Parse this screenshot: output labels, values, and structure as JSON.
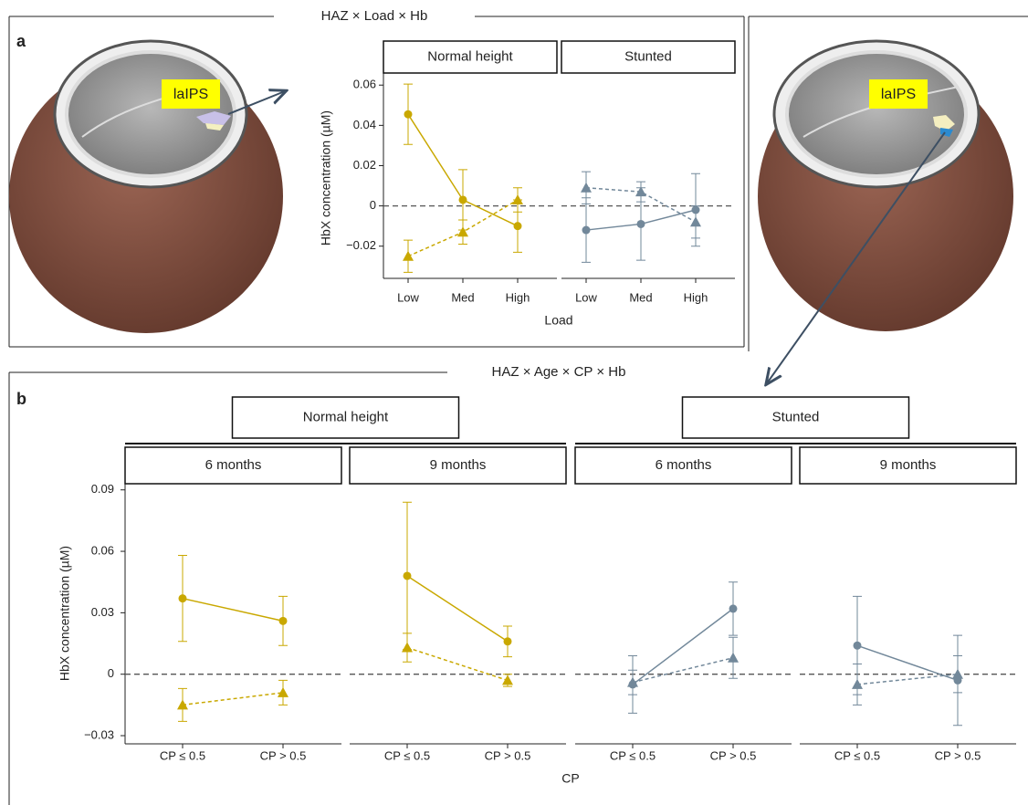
{
  "chart_data": [
    {
      "type": "line",
      "panel_label": "a",
      "title": "HAZ × Load × Hb",
      "annotations": [
        "laIPS",
        "laIPS"
      ],
      "ylabel": "HbX concentration (µM)",
      "xlabel": "Load",
      "categories": [
        "Low",
        "Med",
        "High"
      ],
      "ylim": [
        -0.036,
        0.066
      ],
      "yticks": [
        {
          "value": -0.02,
          "label": "−0.02"
        },
        0,
        0.02,
        0.04,
        0.06
      ],
      "facets": [
        {
          "strip": "Normal height",
          "series": [
            {
              "marker": "circle",
              "dash": false,
              "color": "#c9a800",
              "values": [
                0.0455,
                0.003,
                -0.01
              ],
              "errors": [
                0.015,
                0.015,
                0.013
              ]
            },
            {
              "marker": "triangle",
              "dash": true,
              "color": "#c9a800",
              "values": [
                -0.025,
                -0.013,
                0.003
              ],
              "errors": [
                0.008,
                0.006,
                0.006
              ]
            }
          ]
        },
        {
          "strip": "Stunted",
          "series": [
            {
              "marker": "circle",
              "dash": false,
              "color": "#72889a",
              "values": [
                -0.012,
                -0.009,
                -0.002
              ],
              "errors": [
                0.016,
                0.018,
                0.018
              ]
            },
            {
              "marker": "triangle",
              "dash": true,
              "color": "#72889a",
              "values": [
                0.009,
                0.007,
                -0.008
              ],
              "errors": [
                0.008,
                0.005,
                0.008
              ]
            }
          ]
        }
      ]
    },
    {
      "type": "line",
      "panel_label": "b",
      "title": "HAZ × Age × CP × Hb",
      "ylabel": "HbX concentration (µM)",
      "xlabel": "CP",
      "categories": [
        "CP ≤ 0.5",
        "CP > 0.5"
      ],
      "ylim": [
        -0.034,
        0.093
      ],
      "yticks": [
        {
          "value": -0.03,
          "label": "−0.03"
        },
        0,
        0.03,
        0.06,
        0.09
      ],
      "groups": [
        {
          "strip": "Normal height",
          "facets": [
            {
              "strip": "6 months",
              "series": [
                {
                  "marker": "circle",
                  "dash": false,
                  "color": "#c9a800",
                  "values": [
                    0.037,
                    0.026
                  ],
                  "errors": [
                    0.021,
                    0.012
                  ]
                },
                {
                  "marker": "triangle",
                  "dash": true,
                  "color": "#c9a800",
                  "values": [
                    -0.015,
                    -0.009
                  ],
                  "errors": [
                    0.008,
                    0.006
                  ]
                }
              ]
            },
            {
              "strip": "9 months",
              "series": [
                {
                  "marker": "circle",
                  "dash": false,
                  "color": "#c9a800",
                  "values": [
                    0.048,
                    0.016
                  ],
                  "errors": [
                    0.036,
                    0.0075
                  ]
                },
                {
                  "marker": "triangle",
                  "dash": true,
                  "color": "#c9a800",
                  "values": [
                    0.013,
                    -0.003
                  ],
                  "errors": [
                    0.007,
                    0.003
                  ]
                }
              ]
            }
          ]
        },
        {
          "strip": "Stunted",
          "facets": [
            {
              "strip": "6 months",
              "series": [
                {
                  "marker": "circle",
                  "dash": false,
                  "color": "#72889a",
                  "values": [
                    -0.005,
                    0.032
                  ],
                  "errors": [
                    0.014,
                    0.013
                  ]
                },
                {
                  "marker": "triangle",
                  "dash": true,
                  "color": "#72889a",
                  "values": [
                    -0.004,
                    0.008
                  ],
                  "errors": [
                    0.006,
                    0.01
                  ]
                }
              ]
            },
            {
              "strip": "9 months",
              "series": [
                {
                  "marker": "circle",
                  "dash": false,
                  "color": "#72889a",
                  "values": [
                    0.014,
                    -0.003
                  ],
                  "errors": [
                    0.024,
                    0.022
                  ]
                },
                {
                  "marker": "triangle",
                  "dash": true,
                  "color": "#72889a",
                  "values": [
                    -0.005,
                    0
                  ],
                  "errors": [
                    0.01,
                    0.009
                  ]
                }
              ]
            }
          ]
        }
      ]
    }
  ]
}
